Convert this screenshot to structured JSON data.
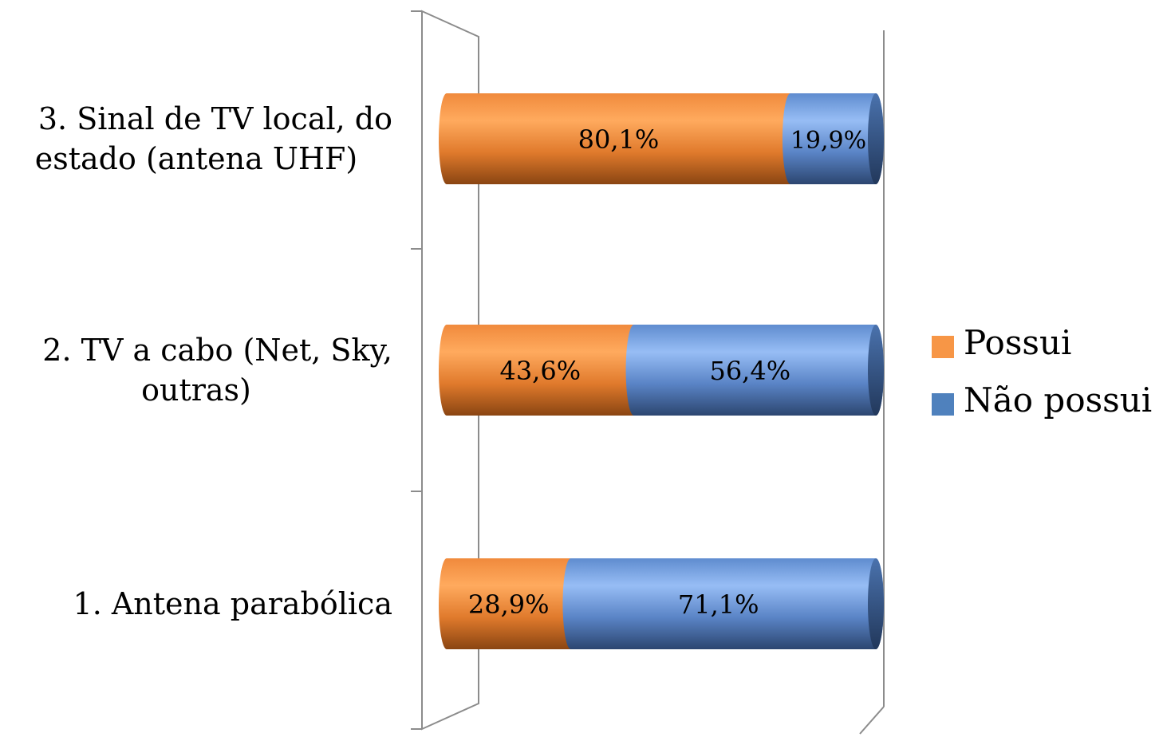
{
  "chart_data": {
    "type": "bar",
    "orientation": "horizontal",
    "stacked": true,
    "percent_stacked": true,
    "style": "3d-cylinder",
    "categories": [
      "1.  Antena parabólica",
      "2.  TV a cabo (Net, Sky, outras)",
      "3.  Sinal de TV  local, do estado (antena UHF)"
    ],
    "category_label_lines": [
      [
        "1.  Antena parabólica"
      ],
      [
        "2.  TV a cabo (Net, Sky,",
        "outras)"
      ],
      [
        "3.  Sinal de TV  local, do",
        "estado (antena UHF)"
      ]
    ],
    "series": [
      {
        "name": "Possui",
        "values": [
          28.9,
          43.6,
          80.1
        ],
        "labels": [
          "28,9%",
          "43,6%",
          "80,1%"
        ],
        "color": "#f79646"
      },
      {
        "name": "Não possui",
        "values": [
          71.1,
          56.4,
          19.9
        ],
        "labels": [
          "71,1%",
          "56,4%",
          "19,9%"
        ],
        "color": "#4f81bd"
      }
    ],
    "xlim": [
      0,
      100
    ],
    "legend_position": "right",
    "grid": false
  }
}
